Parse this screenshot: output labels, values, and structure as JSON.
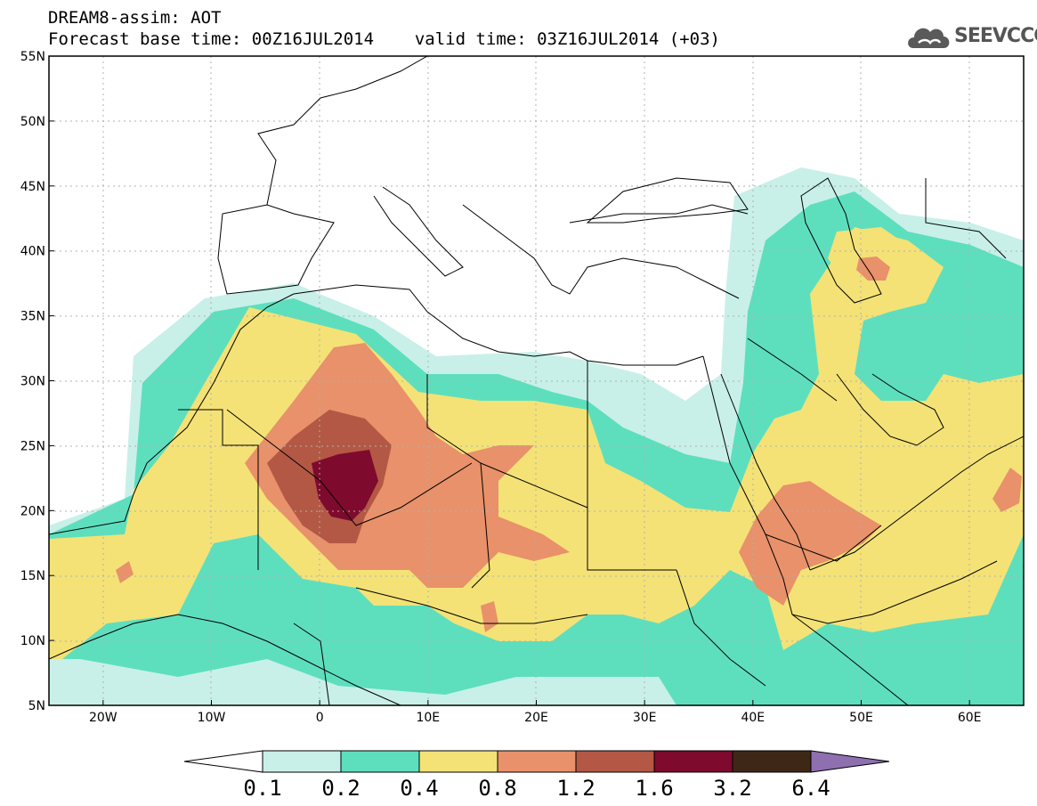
{
  "header": {
    "line1": "DREAM8-assim: AOT",
    "base_time_label": "Forecast base time: 00Z16JUL2014",
    "valid_time_label": "valid time: 03Z16JUL2014 (+03)"
  },
  "logo": {
    "text": "SEEVCCC",
    "icon": "cloud-logo-icon"
  },
  "map": {
    "lat_labels": [
      "55N",
      "50N",
      "45N",
      "40N",
      "35N",
      "30N",
      "25N",
      "20N",
      "15N",
      "10N",
      "5N"
    ],
    "lat_values": [
      55,
      50,
      45,
      40,
      35,
      30,
      25,
      20,
      15,
      10,
      5
    ],
    "lon_labels": [
      "20W",
      "10W",
      "0",
      "10E",
      "20E",
      "30E",
      "40E",
      "50E",
      "60E"
    ],
    "lon_values": [
      -20,
      -10,
      0,
      10,
      20,
      30,
      40,
      50,
      60
    ],
    "lon_range": [
      -25,
      65
    ],
    "lat_range": [
      5,
      55
    ]
  },
  "colorbar": {
    "levels": [
      "0.1",
      "0.2",
      "0.4",
      "0.8",
      "1.2",
      "1.6",
      "3.2",
      "6.4"
    ],
    "colors": [
      "#c8f0e8",
      "#5ddfbe",
      "#f4e276",
      "#e8916a",
      "#b35845",
      "#7e0a2e",
      "#3f2718",
      "#8e6fb0"
    ]
  }
}
